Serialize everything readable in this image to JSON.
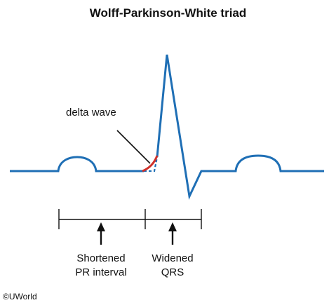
{
  "title": "Wolff-Parkinson-White triad",
  "annotations": {
    "delta_wave": "delta wave",
    "shortened_pr_line1": "Shortened",
    "shortened_pr_line2": "PR interval",
    "widened_qrs_line1": "Widened",
    "widened_qrs_line2": "QRS"
  },
  "copyright": "©UWorld",
  "colors": {
    "trace": "#1f6fb5",
    "delta_wave": "#d0302a",
    "annotation": "#111111"
  }
}
